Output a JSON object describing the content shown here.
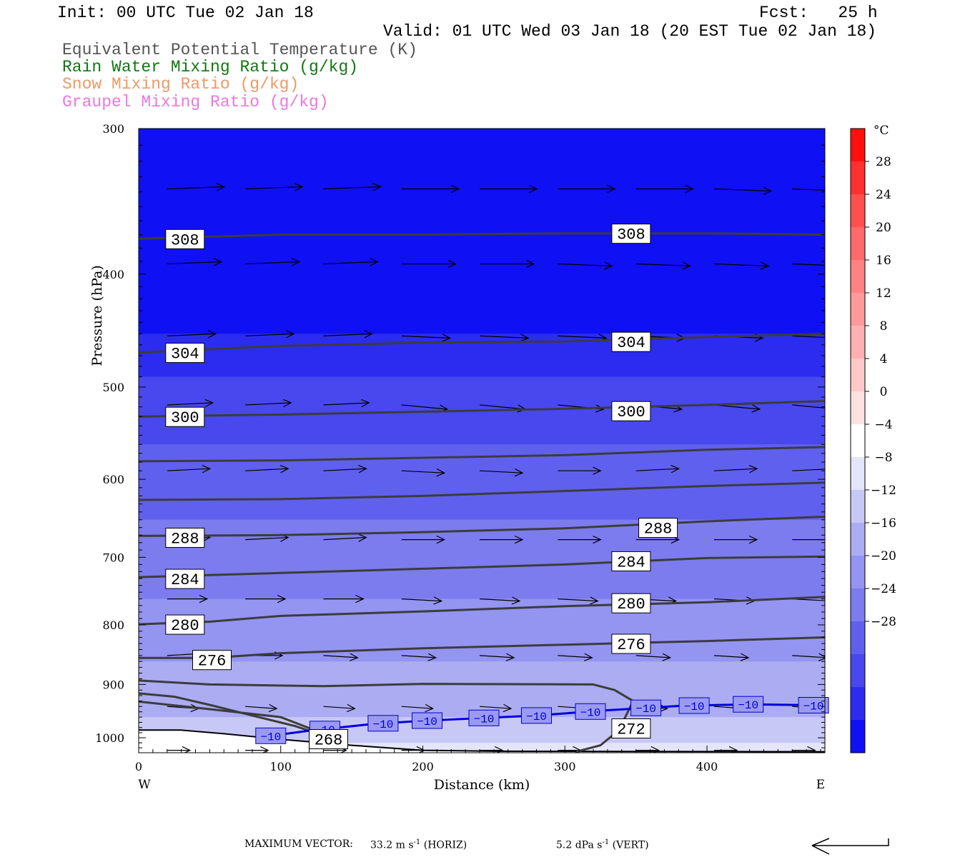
{
  "header": {
    "init": "Init: 00 UTC Tue 02 Jan 18",
    "fcst": "Fcst:   25 h",
    "valid": "Valid: 01 UTC Wed 03 Jan 18 (20 EST Tue 02 Jan 18)",
    "fields": [
      {
        "label": "Equivalent Potential Temperature (K)",
        "color": "#555555"
      },
      {
        "label": "Rain Water Mixing Ratio (g/kg)",
        "color": "#117711"
      },
      {
        "label": "Snow Mixing Ratio (g/kg)",
        "color": "#ee9966"
      },
      {
        "label": "Graupel Mixing Ratio (g/kg)",
        "color": "#ee77dd"
      }
    ]
  },
  "chart_data": {
    "type": "cross-section",
    "xlabel": "Distance (km)",
    "ylabel": "Pressure (hPa)",
    "xlim": [
      0,
      483
    ],
    "ylim": [
      1030,
      300
    ],
    "y_scale": "log",
    "x_ticks": [
      "0",
      "100",
      "200",
      "300",
      "400"
    ],
    "y_ticks": [
      "300",
      "400",
      "500",
      "600",
      "700",
      "800",
      "900",
      "1000"
    ],
    "x_end_labels": {
      "left": "W",
      "right": "E"
    },
    "colorbar": {
      "unit": "°C",
      "labels": [
        "28",
        "24",
        "20",
        "16",
        "12",
        "8",
        "4",
        "0",
        "−4",
        "−8",
        "−12",
        "−16",
        "−20",
        "−24",
        "−28"
      ],
      "colors": [
        "#ff1010",
        "#ff3030",
        "#ff5050",
        "#ff6a6a",
        "#ff8282",
        "#ff9a9a",
        "#ffb0b0",
        "#ffc8c8",
        "#ffe0e0",
        "#ffffff",
        "#e4e4fb",
        "#c8c8f6",
        "#acacf3",
        "#9494f1",
        "#7c7cee",
        "#6060ee",
        "#4848ee",
        "#2c2cf0",
        "#1010f4"
      ]
    },
    "theta_e_contours": [
      {
        "label": "308",
        "points": [
          [
            0,
            373
          ],
          [
            100,
            370
          ],
          [
            200,
            370
          ],
          [
            300,
            369
          ],
          [
            400,
            369
          ],
          [
            483,
            370
          ]
        ]
      },
      {
        "label": "304",
        "points": [
          [
            0,
            467
          ],
          [
            100,
            461
          ],
          [
            200,
            458
          ],
          [
            300,
            457
          ],
          [
            400,
            453
          ],
          [
            483,
            450
          ]
        ]
      },
      {
        "label": "300",
        "points": [
          [
            0,
            530
          ],
          [
            100,
            528
          ],
          [
            200,
            525
          ],
          [
            300,
            522
          ],
          [
            400,
            518
          ],
          [
            483,
            514
          ]
        ]
      },
      {
        "label": "",
        "points": [
          [
            0,
            579
          ],
          [
            100,
            578
          ],
          [
            200,
            575
          ],
          [
            300,
            572
          ],
          [
            400,
            566
          ],
          [
            483,
            563
          ]
        ]
      },
      {
        "label": "",
        "points": [
          [
            0,
            625
          ],
          [
            100,
            624
          ],
          [
            200,
            620
          ],
          [
            300,
            614
          ],
          [
            400,
            608
          ],
          [
            483,
            604
          ]
        ]
      },
      {
        "label": "288",
        "points": [
          [
            0,
            671
          ],
          [
            100,
            670
          ],
          [
            200,
            666
          ],
          [
            300,
            661
          ],
          [
            400,
            652
          ],
          [
            483,
            646
          ]
        ]
      },
      {
        "label": "284",
        "points": [
          [
            0,
            728
          ],
          [
            100,
            722
          ],
          [
            200,
            716
          ],
          [
            300,
            710
          ],
          [
            400,
            701
          ],
          [
            483,
            699
          ]
        ]
      },
      {
        "label": "280",
        "points": [
          [
            0,
            799
          ],
          [
            50,
            795
          ],
          [
            100,
            786
          ],
          [
            200,
            779
          ],
          [
            300,
            771
          ],
          [
            400,
            765
          ],
          [
            483,
            757
          ]
        ]
      },
      {
        "label": "276",
        "points": [
          [
            0,
            854
          ],
          [
            50,
            854
          ],
          [
            100,
            846
          ],
          [
            200,
            838
          ],
          [
            300,
            832
          ],
          [
            400,
            826
          ],
          [
            483,
            820
          ]
        ]
      },
      {
        "label": "",
        "points": [
          [
            0,
            893
          ],
          [
            50,
            900
          ],
          [
            130,
            903
          ],
          [
            200,
            899
          ],
          [
            320,
            900
          ],
          [
            335,
            910
          ],
          [
            348,
            930
          ],
          [
            338,
            985
          ],
          [
            325,
            1015
          ],
          [
            308,
            1028
          ]
        ]
      },
      {
        "label": "",
        "points": [
          [
            0,
            931
          ],
          [
            50,
            945
          ],
          [
            100,
            960
          ],
          [
            120,
            981
          ],
          [
            122,
            988
          ]
        ]
      },
      {
        "label": "",
        "points": [
          [
            0,
            916
          ],
          [
            25,
            922
          ],
          [
            50,
            937
          ],
          [
            80,
            957
          ],
          [
            110,
            977
          ],
          [
            122,
            988
          ]
        ]
      }
    ],
    "theta_e_labels": [
      {
        "text": "308",
        "x": 19,
        "p": 373
      },
      {
        "text": "308",
        "x": 333,
        "p": 369
      },
      {
        "text": "304",
        "x": 19,
        "p": 467
      },
      {
        "text": "304",
        "x": 333,
        "p": 457
      },
      {
        "text": "300",
        "x": 19,
        "p": 530
      },
      {
        "text": "300",
        "x": 333,
        "p": 524
      },
      {
        "text": "288",
        "x": 19,
        "p": 673
      },
      {
        "text": "288",
        "x": 352,
        "p": 660
      },
      {
        "text": "284",
        "x": 19,
        "p": 730
      },
      {
        "text": "284",
        "x": 333,
        "p": 705
      },
      {
        "text": "280",
        "x": 19,
        "p": 799
      },
      {
        "text": "280",
        "x": 333,
        "p": 766
      },
      {
        "text": "276",
        "x": 38,
        "p": 857
      },
      {
        "text": "276",
        "x": 333,
        "p": 830
      },
      {
        "text": "272",
        "x": 333,
        "p": 981
      },
      {
        "text": "268",
        "x": 120,
        "p": 1002
      }
    ],
    "isotherm_minus10": {
      "label": "−10",
      "points": [
        [
          88,
          998
        ],
        [
          120,
          986
        ],
        [
          165,
          973
        ],
        [
          200,
          967
        ],
        [
          240,
          962
        ],
        [
          280,
          957
        ],
        [
          330,
          947
        ],
        [
          380,
          939
        ],
        [
          430,
          936
        ],
        [
          483,
          938
        ]
      ],
      "label_x": [
        93,
        131,
        172,
        203,
        243,
        280,
        318,
        357,
        391,
        429,
        475
      ]
    },
    "surface_pressure": [
      [
        0,
        985
      ],
      [
        30,
        985
      ],
      [
        60,
        992
      ],
      [
        100,
        1003
      ],
      [
        150,
        1015
      ],
      [
        200,
        1025
      ],
      [
        250,
        1027
      ],
      [
        483,
        1028
      ]
    ],
    "wind_vectors": {
      "levels": [
        {
          "p": 338,
          "u": [
            20,
            20,
            20,
            20,
            20,
            20,
            20,
            20,
            20
          ],
          "w": [
            -1,
            -1,
            -1,
            0,
            0,
            0,
            0,
            1,
            1
          ]
        },
        {
          "p": 392,
          "u": [
            19,
            19,
            19,
            19,
            19,
            19,
            19,
            19,
            19
          ],
          "w": [
            -1,
            -1,
            -1,
            0,
            0,
            1,
            1,
            1,
            1
          ]
        },
        {
          "p": 452,
          "u": [
            17,
            17,
            17,
            17,
            17,
            17,
            17,
            17,
            17
          ],
          "w": [
            -1,
            -1,
            -1,
            1,
            1,
            1,
            1,
            1,
            1
          ]
        },
        {
          "p": 518,
          "u": [
            16,
            16,
            16,
            16,
            16,
            16,
            16,
            16,
            16
          ],
          "w": [
            -1,
            -1,
            -1,
            2,
            2,
            2,
            2,
            2,
            2
          ]
        },
        {
          "p": 590,
          "u": [
            15,
            15,
            15,
            15,
            15,
            15,
            15,
            15,
            15
          ],
          "w": [
            -1,
            -1,
            -1,
            1,
            1,
            0,
            -1,
            -1,
            -1
          ]
        },
        {
          "p": 676,
          "u": [
            15,
            15,
            15,
            15,
            15,
            15,
            15,
            15,
            15
          ],
          "w": [
            -1,
            -1,
            -1,
            0,
            0,
            0,
            0,
            0,
            0
          ]
        },
        {
          "p": 760,
          "u": [
            14,
            14,
            14,
            14,
            14,
            14,
            14,
            14,
            14
          ],
          "w": [
            0,
            0,
            0,
            1,
            1,
            1,
            1,
            1,
            1
          ]
        },
        {
          "p": 850,
          "u": [
            13,
            13,
            12,
            12,
            12,
            12,
            12,
            12,
            12
          ],
          "w": [
            -1,
            0,
            1,
            1,
            1,
            1,
            1,
            1,
            1
          ]
        },
        {
          "p": 940,
          "u": [
            11,
            11,
            11,
            11,
            11,
            11,
            11,
            11,
            11
          ],
          "w": [
            1,
            1,
            1,
            1,
            1,
            1,
            1,
            1,
            1
          ]
        },
        {
          "p": 1025,
          "u": [
            8,
            8,
            8,
            8,
            8,
            8,
            8,
            8,
            8
          ],
          "w": [
            0,
            0,
            0,
            0,
            0,
            0,
            0,
            0,
            0
          ]
        }
      ],
      "x": [
        20,
        75,
        130,
        185,
        240,
        295,
        350,
        405,
        460
      ]
    },
    "temperature_field": [
      [
        300,
        "#1010f4"
      ],
      [
        450,
        "#2c2cf0"
      ],
      [
        490,
        "#4848ee"
      ],
      [
        560,
        "#6060ee"
      ],
      [
        650,
        "#7c7cee"
      ],
      [
        760,
        "#9494f1"
      ],
      [
        860,
        "#acacf3"
      ],
      [
        960,
        "#c8c8f6"
      ],
      [
        1010,
        "#e4e4fb"
      ]
    ]
  },
  "footer": {
    "max_vector_label": "MAXIMUM VECTOR:",
    "horiz": "33.2 m s",
    "horiz_unit": "(HORIZ)",
    "vert": "5.2 dPa s",
    "vert_unit": "(VERT)",
    "exponent": "-1"
  }
}
